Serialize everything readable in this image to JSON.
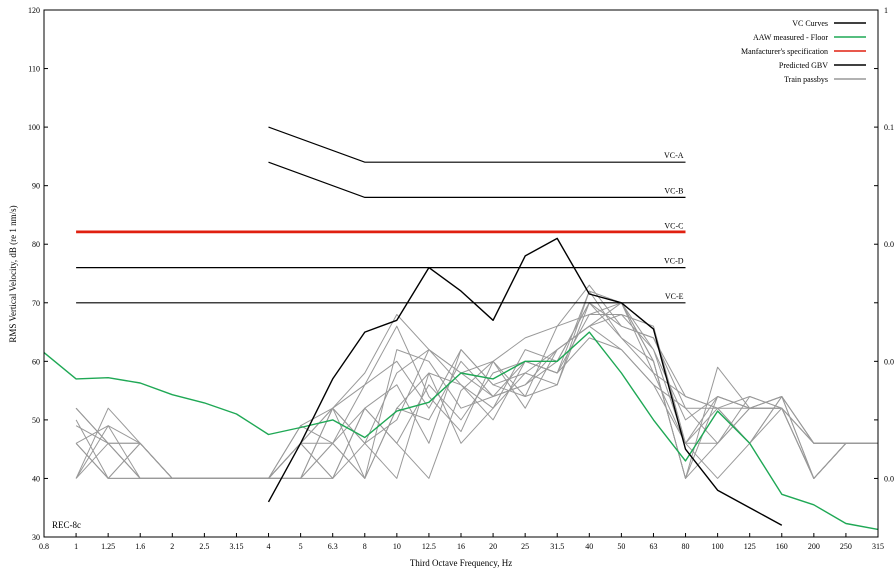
{
  "chart_data": {
    "type": "line",
    "xlabel": "Third Octave Frequency, Hz",
    "ylabel": "RMS Vertical Velocity, dB (re 1 nm/s)",
    "x_ticks": [
      "0.8",
      "1",
      "1.25",
      "1.6",
      "2",
      "2.5",
      "3.15",
      "4",
      "5",
      "6.3",
      "8",
      "10",
      "12.5",
      "16",
      "20",
      "25",
      "31.5",
      "40",
      "50",
      "63",
      "80",
      "100",
      "125",
      "160",
      "200",
      "250",
      "315"
    ],
    "ylim": [
      30,
      120
    ],
    "y_ticks": [
      "30",
      "40",
      "50",
      "60",
      "70",
      "80",
      "90",
      "100",
      "110",
      "120"
    ],
    "right_axis_ticks": [
      "1",
      "0.1",
      "0.0",
      "0.0",
      "0.0"
    ],
    "annotation": "REC-8c",
    "grid": false,
    "legend_position": "top-right",
    "legend": [
      {
        "label": "VC Curves",
        "color": "#000000"
      },
      {
        "label": "AAW measured - Floor",
        "color": "#1fa855"
      },
      {
        "label": "Manfacturer's specification",
        "color": "#e02010"
      },
      {
        "label": "Predicted GBV",
        "color": "#000000"
      },
      {
        "label": "Train passbys",
        "color": "#999999"
      }
    ],
    "vc_curves": [
      {
        "label": "VC-A",
        "x_start": "4",
        "y_start": 100,
        "x_knee": "8",
        "y": 94,
        "x_end": "80"
      },
      {
        "label": "VC-B",
        "x_start": "4",
        "y_start": 94,
        "x_knee": "8",
        "y": 88,
        "x_end": "80"
      },
      {
        "label": "VC-C",
        "x_start": "1",
        "y": 82,
        "x_end": "80"
      },
      {
        "label": "VC-D",
        "x_start": "1",
        "y": 76,
        "x_end": "80"
      },
      {
        "label": "VC-E",
        "x_start": "1",
        "y": 70,
        "x_end": "80"
      }
    ],
    "series": [
      {
        "name": "Manfacturer's specification",
        "color": "#e02010",
        "x": [
          "1",
          "80"
        ],
        "y": [
          82.2,
          82.2
        ]
      },
      {
        "name": "AAW measured - Floor",
        "color": "#1fa855",
        "x": [
          "0.8",
          "1",
          "1.25",
          "1.6",
          "2",
          "2.5",
          "3.15",
          "4",
          "5",
          "6.3",
          "8",
          "10",
          "12.5",
          "16",
          "20",
          "25",
          "31.5",
          "40",
          "50",
          "63",
          "80",
          "100",
          "125",
          "160",
          "200",
          "250",
          "315"
        ],
        "y": [
          61.5,
          57,
          57.2,
          56.3,
          54.3,
          52.9,
          51,
          47.5,
          48.7,
          50,
          47,
          51.5,
          53,
          58,
          57,
          60,
          60,
          65,
          58,
          50,
          43,
          51.5,
          46,
          37.3,
          35.5,
          32.3,
          31.3
        ]
      },
      {
        "name": "Predicted GBV",
        "color": "#000000",
        "x": [
          "4",
          "5",
          "6.3",
          "8",
          "10",
          "12.5",
          "16",
          "20",
          "25",
          "31.5",
          "40",
          "50",
          "63",
          "80",
          "100",
          "125",
          "160"
        ],
        "y": [
          36,
          46,
          57,
          65,
          67,
          76,
          72,
          67,
          78,
          81,
          71.5,
          70,
          65.5,
          45,
          38,
          35,
          32
        ]
      },
      {
        "name": "Train passbys",
        "color": "#999999",
        "x": [
          "1",
          "1.25",
          "1.6",
          "2",
          "2.5",
          "3.15",
          "4",
          "5",
          "6.3",
          "8",
          "10",
          "12.5",
          "16",
          "20",
          "25",
          "31.5",
          "40",
          "50",
          "63",
          "80",
          "100",
          "125",
          "160",
          "200",
          "250",
          "315"
        ],
        "runs": [
          [
            52,
            46,
            40,
            40,
            40,
            40,
            40,
            49,
            52,
            46,
            50,
            62,
            58,
            54,
            60,
            58,
            72,
            70,
            62,
            50,
            54,
            52,
            54,
            46,
            46,
            46
          ],
          [
            50,
            40,
            46,
            40,
            40,
            40,
            40,
            46,
            40,
            52,
            46,
            40,
            55,
            60,
            52,
            62,
            66,
            68,
            66,
            46,
            40,
            46,
            52,
            40,
            46,
            46
          ],
          [
            46,
            49,
            40,
            40,
            40,
            40,
            40,
            40,
            46,
            40,
            52,
            58,
            46,
            52,
            58,
            56,
            70,
            64,
            58,
            54,
            52,
            54,
            52,
            46,
            46,
            46
          ],
          [
            40,
            52,
            46,
            40,
            40,
            40,
            40,
            46,
            52,
            56,
            60,
            52,
            62,
            56,
            54,
            66,
            68,
            70,
            60,
            40,
            46,
            52,
            52,
            40,
            46,
            46
          ],
          [
            46,
            40,
            40,
            40,
            40,
            40,
            40,
            40,
            46,
            52,
            46,
            56,
            50,
            58,
            60,
            58,
            64,
            62,
            56,
            46,
            54,
            52,
            54,
            46,
            46,
            46
          ],
          [
            52,
            46,
            46,
            40,
            40,
            40,
            40,
            46,
            40,
            46,
            58,
            62,
            56,
            52,
            62,
            60,
            70,
            66,
            64,
            52,
            46,
            52,
            52,
            40,
            46,
            46
          ],
          [
            40,
            46,
            40,
            40,
            40,
            40,
            40,
            40,
            52,
            40,
            52,
            50,
            60,
            54,
            56,
            62,
            66,
            70,
            58,
            46,
            52,
            46,
            54,
            46,
            46,
            46
          ],
          [
            46,
            40,
            46,
            40,
            40,
            40,
            40,
            49,
            46,
            56,
            66,
            54,
            48,
            60,
            54,
            56,
            72,
            64,
            60,
            40,
            54,
            52,
            52,
            40,
            46,
            46
          ],
          [
            49,
            46,
            40,
            40,
            40,
            40,
            40,
            46,
            52,
            46,
            40,
            58,
            56,
            50,
            60,
            58,
            68,
            68,
            62,
            46,
            46,
            54,
            52,
            46,
            46,
            46
          ],
          [
            40,
            49,
            46,
            40,
            40,
            40,
            40,
            40,
            40,
            52,
            56,
            46,
            62,
            56,
            58,
            62,
            66,
            62,
            56,
            52,
            52,
            52,
            54,
            40,
            46,
            46
          ],
          [
            46,
            40,
            40,
            40,
            40,
            40,
            40,
            46,
            46,
            40,
            62,
            60,
            52,
            54,
            56,
            60,
            70,
            70,
            60,
            40,
            59,
            52,
            52,
            46,
            46,
            46
          ],
          [
            52,
            46,
            46,
            40,
            40,
            40,
            40,
            40,
            52,
            58,
            68,
            62,
            58,
            60,
            64,
            66,
            73,
            66,
            64,
            54,
            52,
            46,
            54,
            40,
            46,
            46
          ]
        ]
      }
    ]
  }
}
